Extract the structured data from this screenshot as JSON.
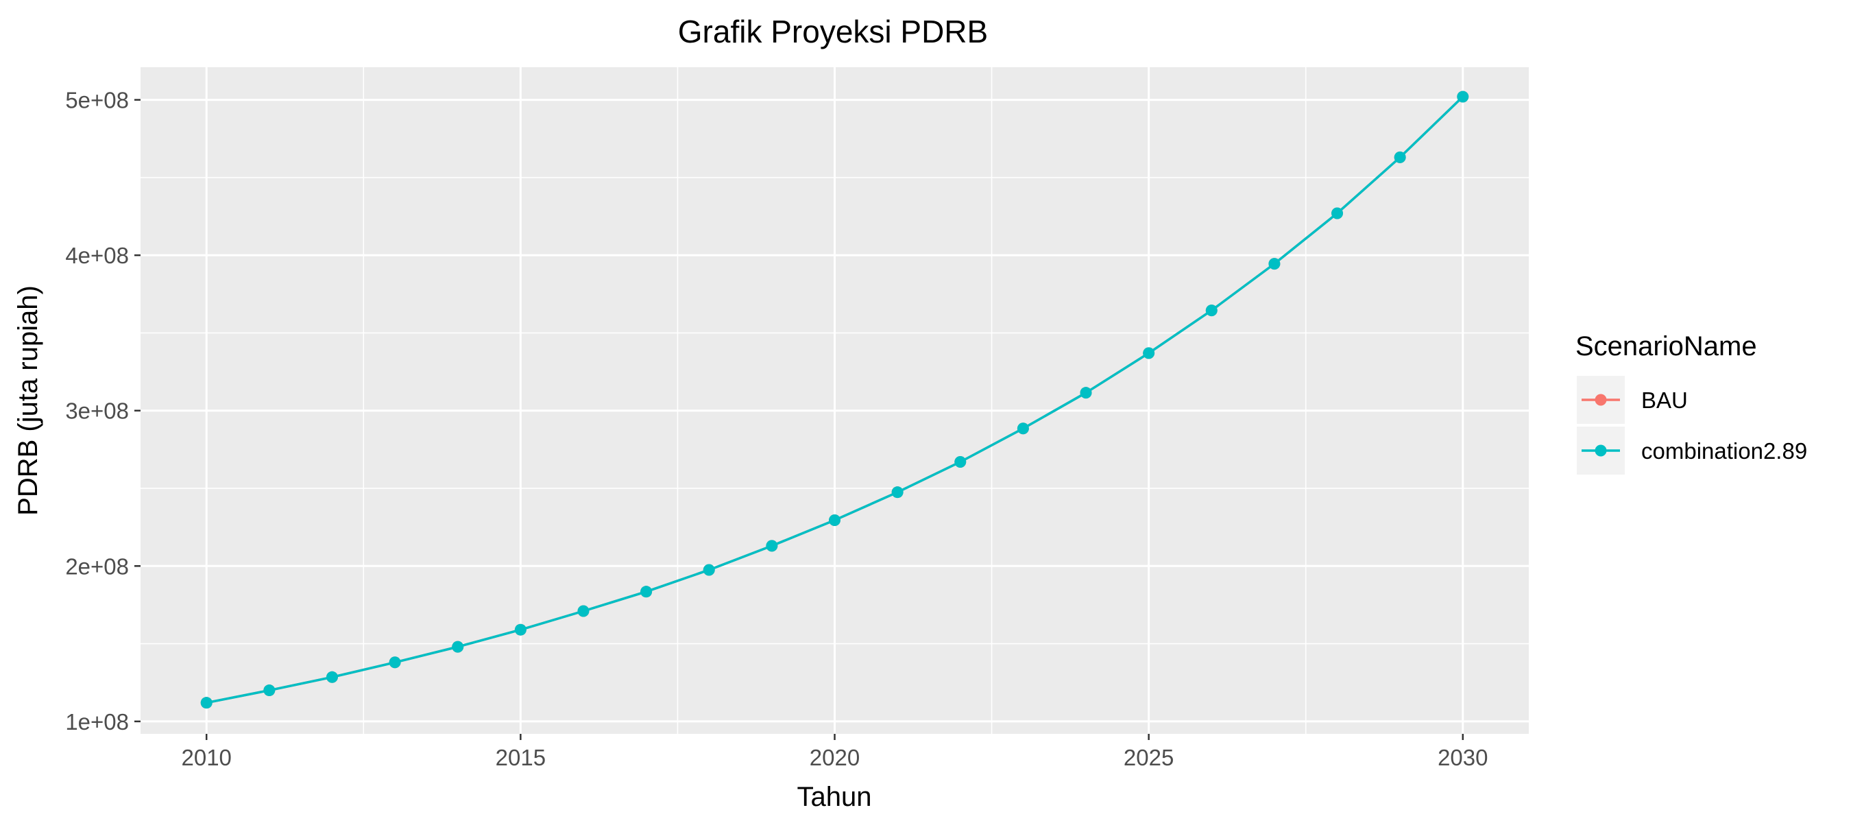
{
  "chart_data": {
    "type": "line",
    "title": "Grafik Proyeksi PDRB",
    "xlabel": "Tahun",
    "ylabel": "PDRB (juta rupiah)",
    "x": [
      2010,
      2011,
      2012,
      2013,
      2014,
      2015,
      2016,
      2017,
      2018,
      2019,
      2020,
      2021,
      2022,
      2023,
      2024,
      2025,
      2026,
      2027,
      2028,
      2029,
      2030
    ],
    "series": [
      {
        "name": "BAU",
        "color": "#F8766D",
        "values": [
          112000000,
          120000000,
          128500000,
          138000000,
          148000000,
          159000000,
          171000000,
          183500000,
          197500000,
          213000000,
          229500000,
          247500000,
          267000000,
          288500000,
          311500000,
          337000000,
          364500000,
          394500000,
          427000000,
          463000000,
          502000000
        ]
      },
      {
        "name": "combination2.89",
        "color": "#00BFC4",
        "values": [
          112000000,
          120000000,
          128500000,
          138000000,
          148000000,
          159000000,
          171000000,
          183500000,
          197500000,
          213000000,
          229500000,
          247500000,
          267000000,
          288500000,
          311500000,
          337000000,
          364500000,
          394500000,
          427000000,
          463000000,
          502000000
        ]
      }
    ],
    "xlim": [
      2008.95,
      2031.05
    ],
    "ylim": [
      92000000,
      521000000
    ],
    "x_ticks": [
      2010,
      2015,
      2020,
      2025,
      2030
    ],
    "x_tick_labels": [
      "2010",
      "2015",
      "2020",
      "2025",
      "2030"
    ],
    "y_ticks": [
      100000000,
      200000000,
      300000000,
      400000000,
      500000000
    ],
    "y_tick_labels": [
      "1e+08",
      "2e+08",
      "3e+08",
      "4e+08",
      "5e+08"
    ],
    "grid": true,
    "panel_background": "#EBEBEB",
    "legend": {
      "title": "ScenarioName",
      "position": "right"
    }
  }
}
